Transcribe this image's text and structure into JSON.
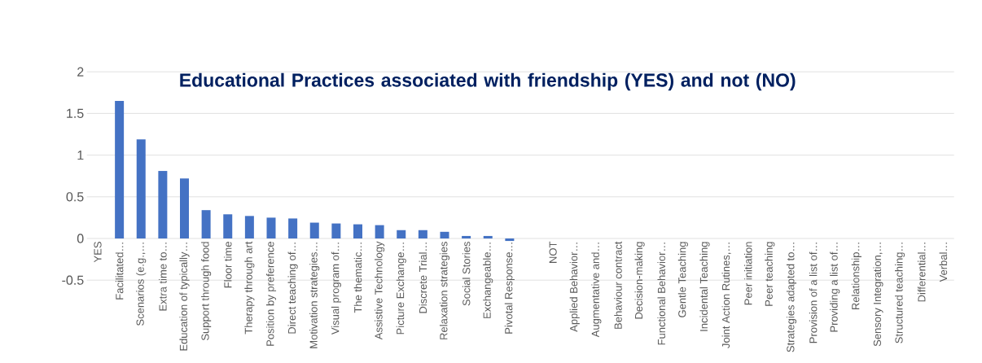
{
  "chart_data": {
    "type": "bar",
    "title": "Educational Practices associated with friendship (YES) and not (NO)",
    "categories": [
      "YES",
      "Facilitated…",
      "Scenarios  (e.g.,…",
      "Extra time to…",
      "Education of typically…",
      "Support through food",
      "Floor time",
      "Therapy through art",
      "Position by preference",
      "Direct teaching of…",
      "Motivation strategies…",
      "Visual program of…",
      "The thematic…",
      "Assistive Technology",
      "Picture  Exchange…",
      "Discrete Trial…",
      "Relaxation strategies",
      "Social Stories",
      "Exchangeable…",
      "Pivotal Response…",
      null,
      "NOT",
      "Applied Behavior…",
      "Augmentative and…",
      "Behaviour contract",
      "Decision-making",
      "Functional Behavior…",
      "Gentle Teaching",
      "Incidental Teaching",
      "Joint Action Rutines,…",
      "Peer initiation",
      "Peer teaching",
      "Strategies adapted to…",
      "Provision of a list of…",
      "Providing a list of…",
      "Relationship…",
      "Sensory Integration,…",
      "Structured teaching…",
      "Differential…",
      "Verbal…"
    ],
    "values": [
      null,
      1.65,
      1.19,
      0.81,
      0.72,
      0.34,
      0.29,
      0.27,
      0.25,
      0.24,
      0.19,
      0.18,
      0.17,
      0.16,
      0.1,
      0.1,
      0.08,
      0.03,
      0.03,
      -0.03,
      null,
      null,
      null,
      null,
      null,
      null,
      null,
      null,
      null,
      null,
      null,
      null,
      null,
      null,
      null,
      null,
      null,
      null,
      null,
      null
    ],
    "color": "#4472c4",
    "ylim": [
      -0.5,
      2
    ],
    "yticks": [
      {
        "value": -0.5,
        "label": "-0.5"
      },
      {
        "value": 0,
        "label": "0"
      },
      {
        "value": 0.5,
        "label": "0.5"
      },
      {
        "value": 1,
        "label": "1"
      },
      {
        "value": 1.5,
        "label": "1.5"
      },
      {
        "value": 2,
        "label": "2"
      }
    ],
    "grid": "y"
  }
}
